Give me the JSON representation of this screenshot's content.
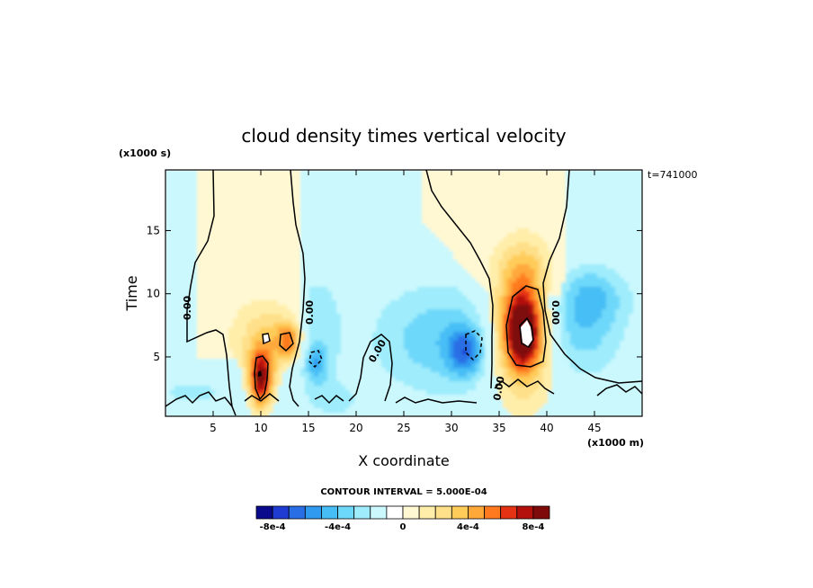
{
  "chart_data": {
    "type": "heatmap",
    "title": "cloud density times vertical velocity",
    "xlabel": "X coordinate",
    "ylabel": "Time",
    "x_unit": "(x1000 m)",
    "y_unit": "(x1000 s)",
    "time_stamp": "t=741000",
    "xlim": [
      0,
      50
    ],
    "ylim": [
      0.3,
      19.8
    ],
    "x_ticks": [
      5,
      10,
      15,
      20,
      25,
      30,
      35,
      40,
      45
    ],
    "y_ticks": [
      5,
      10,
      15
    ],
    "contour_interval_text": "CONTOUR INTERVAL = 5.000E-04",
    "contour_labels": [
      "0.00",
      "0.00",
      "0.00",
      "0.00",
      "0.00"
    ],
    "colorbar": {
      "colors": [
        "#0a0a8c",
        "#1e3cd2",
        "#2a6ee6",
        "#2f9af0",
        "#46bef5",
        "#6ed8fa",
        "#9eecfc",
        "#caf8fd",
        "#ffffff",
        "#fff8d2",
        "#ffeeaa",
        "#ffe08a",
        "#ffcc5a",
        "#ffa83a",
        "#ff7a1e",
        "#e63214",
        "#b4100c",
        "#7e0a0a"
      ],
      "tick_labels": [
        "-8e-4",
        "-4e-4",
        "0",
        "4e-4",
        "8e-4"
      ],
      "tick_values": [
        -0.0008,
        -0.0004,
        0,
        0.0004,
        0.0008
      ]
    },
    "field_blobs": [
      {
        "x": 12,
        "y": 6.5,
        "sx": 3.4,
        "sy": 2.2,
        "amp": 0.00035
      },
      {
        "x": 10.0,
        "y": 3.2,
        "sx": 0.9,
        "sy": 1.6,
        "amp": 0.0008
      },
      {
        "x": 13,
        "y": 6.3,
        "sx": 0.9,
        "sy": 1.0,
        "amp": 0.0004
      },
      {
        "x": 15.5,
        "y": 6.8,
        "sx": 2.2,
        "sy": 3.0,
        "amp": -0.0003
      },
      {
        "x": 15.8,
        "y": 4.5,
        "sx": 0.9,
        "sy": 1.1,
        "amp": -0.0003
      },
      {
        "x": 29,
        "y": 6.4,
        "sx": 5.0,
        "sy": 3.0,
        "amp": -0.00028
      },
      {
        "x": 31.5,
        "y": 5.4,
        "sx": 1.3,
        "sy": 1.4,
        "amp": -0.0004
      },
      {
        "x": 37.5,
        "y": 7.3,
        "sx": 2.6,
        "sy": 4.0,
        "amp": 0.00055
      },
      {
        "x": 37.5,
        "y": 7.0,
        "sx": 1.3,
        "sy": 2.0,
        "amp": 0.00075
      },
      {
        "x": 37.5,
        "y": 12.0,
        "sx": 1.8,
        "sy": 1.5,
        "amp": 0.00018
      },
      {
        "x": 43,
        "y": 7.5,
        "sx": 3.4,
        "sy": 2.8,
        "amp": -0.0003
      },
      {
        "x": 45,
        "y": 10.0,
        "sx": 2.5,
        "sy": 1.5,
        "amp": -0.00018
      },
      {
        "x": 3,
        "y": 2.2,
        "sx": 4.0,
        "sy": 1.2,
        "amp": -0.00012
      },
      {
        "x": 18,
        "y": 1.5,
        "sx": 2.0,
        "sy": 1.0,
        "amp": -0.00012
      }
    ]
  }
}
